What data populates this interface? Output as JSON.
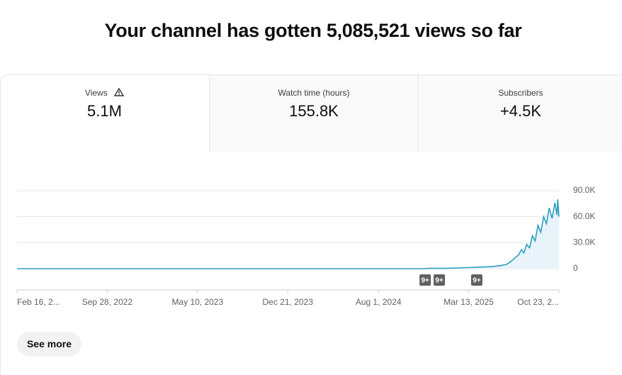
{
  "header": {
    "title": "Your channel has gotten 5,085,521 views so far"
  },
  "tabs": [
    {
      "label": "Views",
      "value": "5.1M"
    },
    {
      "label": "Watch time (hours)",
      "value": "155.8K"
    },
    {
      "label": "Subscribers",
      "value": "+4.5K"
    }
  ],
  "chart_data": {
    "type": "line",
    "x": [
      0,
      100,
      200,
      300,
      400,
      500,
      600,
      700,
      800,
      900,
      1000,
      1030,
      1060,
      1090,
      1118,
      1150,
      1180,
      1200,
      1215,
      1225,
      1235,
      1245,
      1252,
      1258,
      1265,
      1272,
      1279,
      1286,
      1293,
      1300,
      1307,
      1314,
      1321,
      1328,
      1335,
      1340,
      1342,
      1345
    ],
    "series": [
      {
        "color": "#2b9fc1",
        "values": [
          0,
          0,
          0,
          0,
          0,
          0,
          0,
          0,
          0,
          0,
          0,
          500,
          300,
          800,
          1200,
          1800,
          2500,
          3500,
          5000,
          8000,
          12000,
          16000,
          22000,
          18000,
          28000,
          24000,
          38000,
          32000,
          50000,
          42000,
          60000,
          52000,
          70000,
          58000,
          76000,
          62000,
          80000,
          60000
        ]
      }
    ],
    "xlim": [
      0,
      1345
    ],
    "xticks": [
      {
        "value": 0,
        "label": "Feb 16, 2..."
      },
      {
        "value": 224,
        "label": "Sep 28, 2022"
      },
      {
        "value": 448,
        "label": "May 10, 2023"
      },
      {
        "value": 672,
        "label": "Dec 21, 2023"
      },
      {
        "value": 897,
        "label": "Aug 1, 2024"
      },
      {
        "value": 1121,
        "label": "Mar 13, 2025"
      },
      {
        "value": 1345,
        "label": "Oct 23, 2..."
      }
    ],
    "ylim": [
      0,
      90000
    ],
    "yticks": [
      {
        "value": 0,
        "label": "0"
      },
      {
        "value": 30000,
        "label": "30.0K"
      },
      {
        "value": 60000,
        "label": "60.0K"
      },
      {
        "value": 90000,
        "label": "90.0K"
      }
    ],
    "grid": true,
    "markers": [
      {
        "x": 1013,
        "label": "9+"
      },
      {
        "x": 1048,
        "label": "9+"
      },
      {
        "x": 1141,
        "label": "9+"
      }
    ]
  },
  "button": "See more"
}
